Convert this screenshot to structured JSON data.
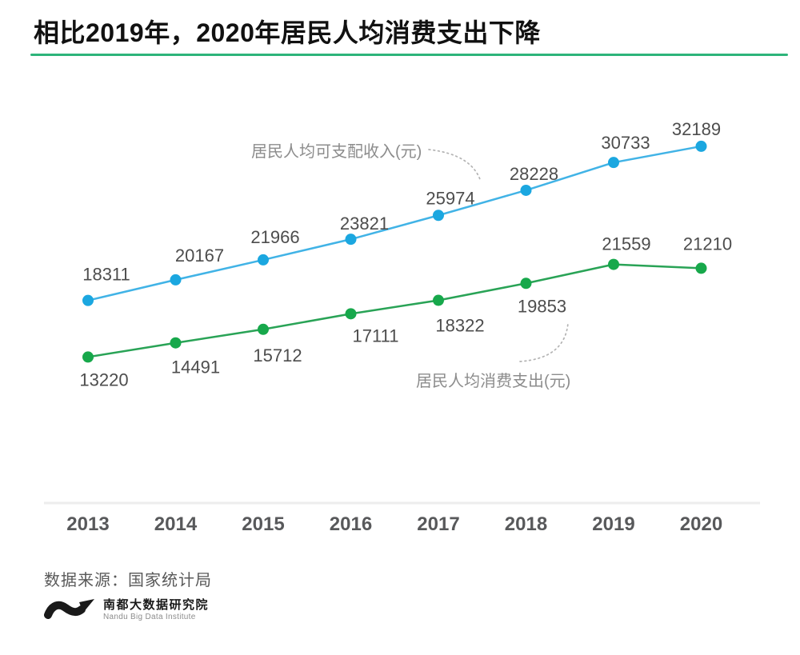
{
  "header": {
    "title": "相比2019年，2020年居民人均消费支出下降",
    "underline_color": "#2db47a"
  },
  "chart_data": {
    "type": "line",
    "categories": [
      "2013",
      "2014",
      "2015",
      "2016",
      "2017",
      "2018",
      "2019",
      "2020"
    ],
    "series": [
      {
        "name": "居民人均可支配收入(元)",
        "line_color": "#41b3e6",
        "point_color": "#1ba7e0",
        "values": [
          18311,
          20167,
          21966,
          23821,
          25974,
          28228,
          30733,
          32189
        ]
      },
      {
        "name": "居民人均消费支出(元)",
        "line_color": "#29a356",
        "point_color": "#17a84b",
        "values": [
          13220,
          14491,
          15712,
          17111,
          18322,
          19853,
          21559,
          21210
        ]
      }
    ],
    "title": "相比2019年，2020年居民人均消费支出下降",
    "xlabel": "",
    "ylabel": "",
    "ylim": [
      0,
      35000
    ],
    "grid": false,
    "legend": "inline-annotations",
    "axis_line_color": "#ededed",
    "data_label_color": "#4d4d4d",
    "tick_label_color": "#58595b"
  },
  "annotations": {
    "income_label": "居民人均可支配收入(元)",
    "expense_label": "居民人均消费支出(元)",
    "arc_color": "#b3b3b3"
  },
  "footer": {
    "source": "数据来源：国家统计局",
    "logo_cn": "南都大数据研究院",
    "logo_en": "Nandu Big Data Institute"
  }
}
